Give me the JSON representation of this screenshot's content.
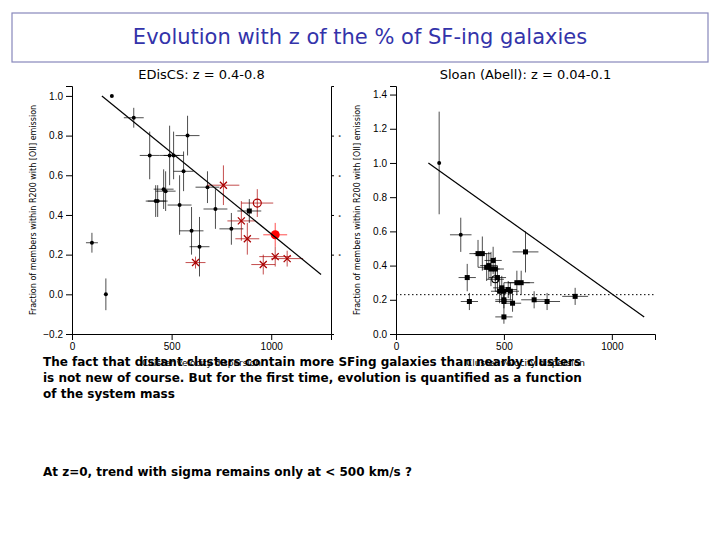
{
  "title": "Evolution with z of the % of SF-ing galaxies",
  "color": "#3333aa",
  "annotations": [
    "The fact that distant clusters contain more SFing galaxies than nearby clusters\nis not new of course. But for the first time, evolution is quantified as a function\nof the system mass",
    "At z=0, trend with sigma remains only at < 500 km/s ?"
  ],
  "chart_data": [
    {
      "type": "scatter",
      "title": "EDisCS: z = 0.4-0.8",
      "xlabel": "Cluster velocity dispersion",
      "ylabel": "Fraction of members within R200 with [OII] emission",
      "grid": false,
      "xlim": [
        0,
        1300
      ],
      "xticks": [
        0,
        500,
        1000
      ],
      "ylim": [
        -0.2,
        1.05
      ],
      "yticks": [
        {
          "value": -0.2,
          "label": "−0.2"
        },
        {
          "value": 0,
          "label": "0.0"
        },
        0.2,
        0.4,
        0.6,
        0.8,
        {
          "value": 1,
          "label": "1.0"
        }
      ],
      "y2lim": [
        -0.2,
        1.05
      ],
      "y2ticks": [
        {
          "value": 0.2,
          "label": "·"
        },
        {
          "value": 0.4,
          "label": "·"
        },
        {
          "value": 0.6,
          "label": "·"
        },
        {
          "value": 0.8,
          "label": "·"
        }
      ],
      "series": [
        {
          "type": "scatter",
          "marker": "circle",
          "color": "black",
          "x": [
            200,
            310,
            390,
            420,
            430,
            460,
            470,
            490,
            510,
            540,
            560,
            580,
            600,
            640,
            680,
            720,
            800,
            100,
            170
          ],
          "values": [
            1.0,
            0.89,
            0.7,
            0.47,
            0.47,
            0.53,
            0.52,
            0.7,
            0.7,
            0.45,
            0.62,
            0.8,
            0.32,
            0.24,
            0.54,
            0.43,
            0.33,
            0.26,
            0.0
          ],
          "xerr": [
            0,
            50,
            50,
            50,
            50,
            50,
            50,
            50,
            50,
            60,
            50,
            60,
            60,
            50,
            60,
            60,
            60,
            30,
            0
          ],
          "yerr": [
            0,
            0.05,
            0.12,
            0.08,
            0.08,
            0.1,
            0.1,
            0.15,
            0.12,
            0.15,
            0.1,
            0.1,
            0.12,
            0.15,
            0.08,
            0.1,
            0.08,
            0.05,
            0.08
          ]
        },
        {
          "type": "scatter",
          "marker": "x",
          "color": "#aa0000",
          "x": [
            620,
            760,
            850,
            880,
            960,
            1020,
            1080
          ],
          "values": [
            0.16,
            0.55,
            0.37,
            0.28,
            0.15,
            0.19,
            0.18
          ],
          "xerr": [
            50,
            80,
            70,
            60,
            60,
            80,
            80
          ],
          "yerr": [
            0.03,
            0.1,
            0.1,
            0.08,
            0.05,
            0.05,
            0.04
          ]
        },
        {
          "type": "scatter",
          "marker": "circle",
          "color": "red",
          "x": [
            1020
          ],
          "values": [
            0.3
          ],
          "xerr": [
            60
          ],
          "yerr": [
            0.06
          ]
        },
        {
          "type": "scatter",
          "marker": "open-circle",
          "color": "#aa0000",
          "x": [
            930
          ],
          "values": [
            0.46
          ],
          "xerr": [
            80
          ],
          "yerr": [
            0.07
          ]
        },
        {
          "type": "scatter",
          "marker": "square",
          "color": "black",
          "x": [
            890
          ],
          "values": [
            0.42
          ],
          "xerr": [
            60
          ],
          "yerr": [
            0.06
          ]
        },
        {
          "type": "line",
          "line_style": "solid",
          "color": "black",
          "x": [
            150,
            1250
          ],
          "values": [
            1.0,
            0.1
          ]
        }
      ]
    },
    {
      "type": "scatter",
      "title": "Sloan (Abell): z = 0.04-0.1",
      "xlabel": "Cluster velocity dispersion",
      "ylabel": "Fraction of members within R200 with [OII] emission",
      "grid": false,
      "xlim": [
        0,
        1200
      ],
      "xticks": [
        0,
        500,
        1000
      ],
      "ylim": [
        0,
        1.45
      ],
      "yticks": [
        {
          "value": 0,
          "label": "0.0"
        },
        0.2,
        0.4,
        0.6,
        0.8,
        {
          "value": 1,
          "label": "1.0"
        },
        1.2,
        1.4
      ],
      "series": [
        {
          "type": "scatter",
          "marker": "circle",
          "color": "black",
          "x": [
            200,
            300
          ],
          "values": [
            1.0,
            0.58
          ],
          "xerr": [
            0,
            50
          ],
          "yerr": [
            0.3,
            0.1
          ]
        },
        {
          "type": "scatter",
          "marker": "square",
          "color": "black",
          "x": [
            380,
            400,
            420,
            430,
            440,
            450,
            460,
            470,
            480,
            490,
            500,
            500,
            500,
            520,
            530,
            540,
            560,
            580,
            600,
            640,
            700,
            340,
            500,
            830,
            330
          ],
          "values": [
            0.47,
            0.47,
            0.39,
            0.4,
            0.38,
            0.43,
            0.38,
            0.33,
            0.25,
            0.27,
            0.25,
            0.19,
            0.2,
            0.26,
            0.25,
            0.18,
            0.3,
            0.3,
            0.48,
            0.2,
            0.19,
            0.19,
            0.1,
            0.22,
            0.33
          ],
          "xerr": [
            40,
            40,
            40,
            40,
            40,
            40,
            40,
            40,
            40,
            40,
            40,
            40,
            40,
            40,
            40,
            40,
            60,
            60,
            60,
            60,
            60,
            40,
            40,
            60,
            40
          ],
          "yerr": [
            0.08,
            0.1,
            0.08,
            0.08,
            0.1,
            0.08,
            0.07,
            0.07,
            0.07,
            0.07,
            0.05,
            0.05,
            0.05,
            0.05,
            0.05,
            0.05,
            0.07,
            0.07,
            0.12,
            0.05,
            0.05,
            0.05,
            0.04,
            0.05,
            0.08
          ]
        },
        {
          "type": "scatter",
          "marker": "open-circle",
          "color": "black",
          "x": [
            460
          ],
          "values": [
            0.32
          ],
          "xerr": [
            40
          ],
          "yerr": [
            0.07
          ]
        },
        {
          "type": "hline",
          "line_style": "dotted",
          "color": "black",
          "values": [
            0.23
          ]
        },
        {
          "type": "line",
          "line_style": "solid",
          "color": "black",
          "x": [
            150,
            1150
          ],
          "values": [
            1.0,
            0.1
          ]
        }
      ]
    }
  ]
}
